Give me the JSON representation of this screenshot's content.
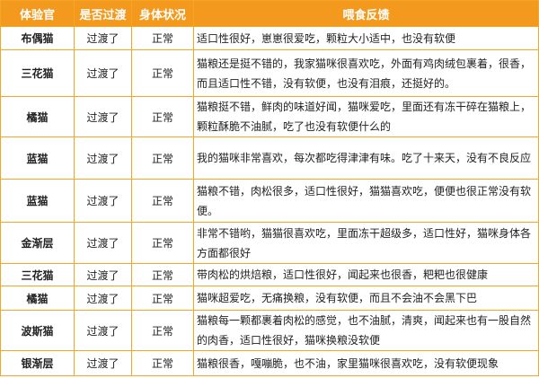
{
  "header_color": "#f39a1e",
  "columns": [
    "体验官",
    "是否过渡",
    "身体状况",
    "喂食反馈"
  ],
  "rows": [
    {
      "cat": "布偶猫",
      "transition": "过渡了",
      "health": "正常",
      "feedback": "适口性很好，崽崽很爱吃，颗粒大小适中，也没有软便"
    },
    {
      "cat": "三花猫",
      "transition": "过渡了",
      "health": "正常",
      "feedback": "猫粮还是挺不错的，我家猫咪很喜欢吃，外面有鸡肉绒包裹着，很香，而且适口性不错，没有软便，也没有泪痕，还挺好的。"
    },
    {
      "cat": "橘猫",
      "transition": "过渡了",
      "health": "正常",
      "feedback": "猫粮挺不错，鲜肉的味道好闻，猫咪爱吃，里面还有冻干碎在猫粮上，颗粒酥脆不油腻，吃了也没有软便什么的"
    },
    {
      "cat": "蓝猫",
      "transition": "过渡了",
      "health": "正常",
      "feedback": "我的猫咪非常喜欢，每次都吃得津津有味。吃了十来天，没有不良反应"
    },
    {
      "cat": "蓝猫",
      "transition": "过渡了",
      "health": "正常",
      "feedback": "猫粮不错，肉松很多，适口性很好，猫猫喜欢吃，便便也很正常没有软便。"
    },
    {
      "cat": "金渐层",
      "transition": "过渡了",
      "health": "正常",
      "feedback": "非常不错哟，猫猫很喜欢吃，里面冻干超级多，适口性好，猫咪身体各方面都很好"
    },
    {
      "cat": "三花猫",
      "transition": "过渡了",
      "health": "正常",
      "feedback": "带肉松的烘焙粮，适口性很好，闻起来也很香，粑粑也很健康"
    },
    {
      "cat": "橘猫",
      "transition": "过渡了",
      "health": "正常",
      "feedback": "猫咪超爱吃，无痛换粮，没有软便，而且不会油不会黑下巴"
    },
    {
      "cat": "波斯猫",
      "transition": "过渡了",
      "health": "正常",
      "feedback": "猫粮每一颗都裹着肉松的感觉，也不油腻，清爽，闻起来也有一股自然的肉香，适口性很好，猫咪换粮没软便"
    },
    {
      "cat": "银渐层",
      "transition": "过渡了",
      "health": "正常",
      "feedback": "猫粮很香，嘎嘣脆，也不油，家里猫咪很喜欢吃，没有软便现象"
    }
  ]
}
